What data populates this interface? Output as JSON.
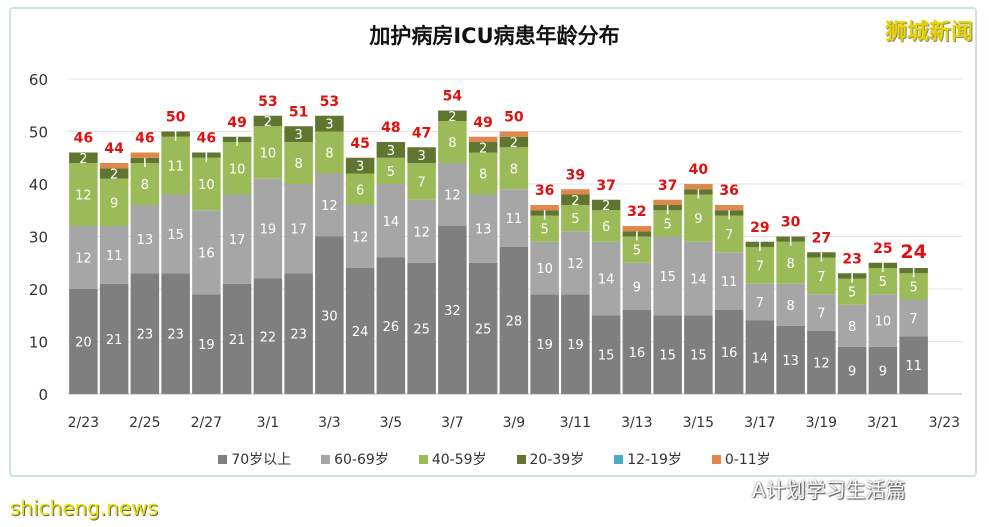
{
  "logo": "狮城新闻",
  "watermarks": {
    "site": "shicheng.news",
    "account": "A计划学习生活篇"
  },
  "colors": {
    "70+": "#7f7f7f",
    "60-69": "#a6a6a6",
    "40-59": "#9bbb59",
    "20-39": "#5f7530",
    "12-19": "#4bacc6",
    "0-11": "#e0884b",
    "total": "#e01010"
  },
  "chart_data": {
    "type": "bar",
    "stacked": true,
    "title": "加护病房ICU病患年龄分布",
    "xlabel": "",
    "ylabel": "",
    "ylim": [
      0,
      60
    ],
    "yticks": [
      0,
      10,
      20,
      30,
      40,
      50,
      60
    ],
    "grid": true,
    "legend_position": "bottom",
    "categories": [
      "2/23",
      "2/24",
      "2/25",
      "2/26",
      "2/27",
      "2/28",
      "3/1",
      "3/2",
      "3/3",
      "3/4",
      "3/5",
      "3/6",
      "3/7",
      "3/8",
      "3/9",
      "3/10",
      "3/11",
      "3/12",
      "3/13",
      "3/14",
      "3/15",
      "3/16",
      "3/17",
      "3/18",
      "3/19",
      "3/20",
      "3/21",
      "3/22",
      "3/23"
    ],
    "xtick_labels": [
      "2/23",
      "2/25",
      "2/27",
      "3/1",
      "3/3",
      "3/5",
      "3/7",
      "3/9",
      "3/11",
      "3/13",
      "3/15",
      "3/17",
      "3/19",
      "3/21",
      "3/23"
    ],
    "series": [
      {
        "name": "70岁以上",
        "values": [
          20,
          21,
          23,
          23,
          19,
          21,
          22,
          23,
          30,
          24,
          26,
          25,
          32,
          25,
          28,
          19,
          19,
          15,
          16,
          15,
          15,
          16,
          14,
          13,
          12,
          9,
          9,
          11,
          null
        ]
      },
      {
        "name": "60-69岁",
        "values": [
          12,
          11,
          13,
          15,
          16,
          17,
          19,
          17,
          12,
          12,
          14,
          12,
          12,
          13,
          11,
          10,
          12,
          14,
          9,
          15,
          14,
          11,
          7,
          8,
          7,
          8,
          10,
          7,
          null
        ]
      },
      {
        "name": "40-59岁",
        "values": [
          12,
          9,
          8,
          11,
          10,
          10,
          10,
          8,
          8,
          6,
          5,
          7,
          8,
          8,
          8,
          5,
          5,
          6,
          5,
          5,
          9,
          7,
          7,
          8,
          7,
          5,
          5,
          5,
          null
        ]
      },
      {
        "name": "20-39岁",
        "values": [
          2,
          2,
          1,
          1,
          1,
          1,
          2,
          3,
          3,
          3,
          3,
          3,
          2,
          2,
          2,
          1,
          2,
          2,
          1,
          1,
          1,
          1,
          1,
          1,
          1,
          1,
          1,
          1,
          null
        ]
      },
      {
        "name": "12-19岁",
        "values": [
          0,
          0,
          0,
          0,
          0,
          0,
          0,
          0,
          0,
          0,
          0,
          0,
          0,
          0,
          0,
          0,
          0,
          0,
          0,
          0,
          0,
          0,
          0,
          0,
          0,
          0,
          0,
          0,
          null
        ]
      },
      {
        "name": "0-11岁",
        "values": [
          0,
          1,
          1,
          0,
          0,
          0,
          0,
          0,
          0,
          0,
          0,
          0,
          0,
          1,
          1,
          1,
          1,
          0,
          1,
          1,
          1,
          1,
          0,
          0,
          0,
          0,
          0,
          0,
          null
        ]
      }
    ],
    "totals": [
      46,
      44,
      46,
      50,
      46,
      49,
      53,
      51,
      53,
      45,
      48,
      47,
      54,
      49,
      50,
      36,
      39,
      37,
      32,
      37,
      40,
      36,
      29,
      30,
      27,
      23,
      25,
      24,
      null
    ]
  }
}
